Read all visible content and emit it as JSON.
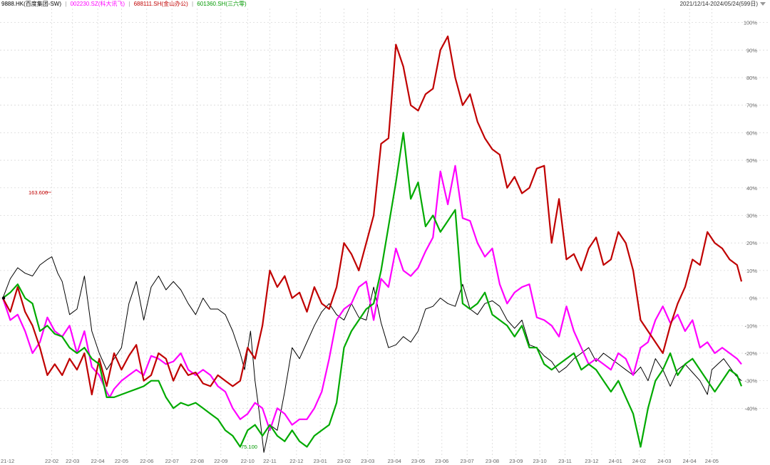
{
  "header": {
    "legend": [
      {
        "text": "9888.HK(百度集团-SW)",
        "color": "#000000"
      },
      {
        "text": "002230.SZ(科大讯飞)",
        "color": "#ff00ff"
      },
      {
        "text": "688111.SH(金山办公)",
        "color": "#c00000"
      },
      {
        "text": "601360.SH(三六零)",
        "color": "#009900"
      }
    ],
    "date_range": "2021/12/14-2024/05/24(599日)"
  },
  "annotations": {
    "max_label": "163.600",
    "min_label": "75.100"
  },
  "colors": {
    "baidu": "#000000",
    "iflytek": "#ff00ff",
    "kingsoft": "#c00000",
    "s360": "#00aa00",
    "grid": "#d9d9d9",
    "axis_text": "#666666"
  },
  "chart_data": {
    "type": "line",
    "title": "",
    "xlabel": "",
    "ylabel": "",
    "ylim": [
      -58,
      103
    ],
    "grid": true,
    "legend_position": "top-left",
    "y_ticks": [
      100,
      90,
      80,
      70,
      60,
      50,
      40,
      30,
      20,
      10,
      0,
      -10,
      -20,
      -30,
      -40
    ],
    "y_tick_labels": [
      "100%",
      "90%",
      "80%",
      "70%",
      "60%",
      "50%",
      "40%",
      "30%",
      "20%",
      "10%",
      "0%",
      "-10%",
      "-20%",
      "-30%",
      "-40%"
    ],
    "x_ticks": [
      "21-12",
      "22-02",
      "22-03",
      "22-04",
      "22-05",
      "22-06",
      "22-07",
      "22-08",
      "22-09",
      "22-10",
      "22-11",
      "22-12",
      "23-01",
      "23-02",
      "23-03",
      "23-04",
      "23-05",
      "23-06",
      "23-07",
      "23-08",
      "23-09",
      "23-10",
      "23-11",
      "23-12",
      "24-01",
      "24-02",
      "24-03",
      "24-04",
      "24-05"
    ],
    "x_tick_pos": [
      0,
      33,
      47,
      64,
      80,
      97,
      114,
      131,
      147,
      165,
      180,
      198,
      214,
      230,
      246,
      264,
      280,
      296,
      313,
      330,
      346,
      362,
      379,
      397,
      413,
      429,
      446,
      463,
      478
    ],
    "x_max": 498,
    "series": [
      {
        "name": "9888.HK(百度集团-SW)",
        "key": "baidu",
        "x": [
          0,
          5,
          10,
          15,
          20,
          25,
          30,
          33,
          37,
          40,
          45,
          50,
          55,
          60,
          65,
          70,
          75,
          80,
          85,
          90,
          95,
          100,
          105,
          110,
          115,
          120,
          125,
          130,
          135,
          140,
          145,
          150,
          155,
          160,
          163,
          167,
          170,
          173,
          176,
          180,
          185,
          190,
          195,
          200,
          205,
          210,
          215,
          220,
          225,
          230,
          235,
          240,
          245,
          250,
          255,
          260,
          265,
          270,
          275,
          280,
          285,
          290,
          295,
          300,
          305,
          310,
          315,
          320,
          325,
          330,
          335,
          340,
          345,
          350,
          355,
          360,
          365,
          370,
          375,
          380,
          385,
          390,
          395,
          400,
          405,
          410,
          415,
          420,
          425,
          430,
          435,
          440,
          445,
          450,
          455,
          460,
          465,
          470,
          475,
          478,
          482,
          486,
          490,
          494,
          498
        ],
        "y": [
          0,
          7,
          11,
          9,
          8,
          12,
          14,
          15,
          9,
          6,
          -6,
          -4,
          8,
          -12,
          -20,
          -26,
          -22,
          -18,
          -2,
          6,
          -8,
          4,
          8,
          3,
          6,
          3,
          -2,
          -6,
          0,
          -4,
          -4,
          -6,
          -12,
          -20,
          -26,
          -12,
          -30,
          -42,
          -56,
          -46,
          -48,
          -34,
          -18,
          -22,
          -16,
          -10,
          -5,
          -2,
          -6,
          -8,
          -2,
          -7,
          -8,
          4,
          -9,
          -18,
          -17,
          -14,
          -16,
          -12,
          -4,
          -3,
          0,
          -2,
          -3,
          5,
          -4,
          -6,
          -2,
          -1,
          -3,
          -8,
          -11,
          -8,
          -17,
          -18,
          -21,
          -23,
          -27,
          -25,
          -22,
          -20,
          -18,
          -23,
          -20,
          -22,
          -24,
          -26,
          -28,
          -25,
          -30,
          -22,
          -26,
          -32,
          -26,
          -24,
          -27,
          -30,
          -35,
          -26,
          -24,
          -22,
          -25,
          -28,
          -30
        ]
      },
      {
        "name": "002230.SZ(科大讯飞)",
        "key": "iflytek",
        "x": [
          0,
          5,
          10,
          15,
          20,
          25,
          30,
          35,
          40,
          45,
          50,
          55,
          60,
          65,
          70,
          72,
          75,
          80,
          85,
          90,
          95,
          100,
          105,
          110,
          115,
          120,
          125,
          130,
          135,
          140,
          145,
          150,
          155,
          160,
          165,
          170,
          175,
          180,
          185,
          190,
          195,
          200,
          205,
          210,
          215,
          220,
          225,
          230,
          235,
          240,
          245,
          250,
          255,
          260,
          265,
          270,
          275,
          280,
          285,
          290,
          295,
          300,
          305,
          310,
          315,
          320,
          325,
          330,
          335,
          340,
          345,
          350,
          355,
          360,
          365,
          370,
          375,
          380,
          385,
          390,
          395,
          400,
          405,
          410,
          415,
          420,
          425,
          430,
          435,
          440,
          445,
          450,
          455,
          460,
          465,
          470,
          475,
          480,
          485,
          490,
          495,
          498
        ],
        "y": [
          0,
          -8,
          -6,
          -12,
          -20,
          -16,
          -7,
          -12,
          -14,
          -10,
          -20,
          -12,
          -25,
          -28,
          -34,
          -36,
          -33,
          -30,
          -28,
          -26,
          -28,
          -21,
          -22,
          -24,
          -23,
          -20,
          -26,
          -28,
          -26,
          -28,
          -32,
          -34,
          -40,
          -44,
          -42,
          -38,
          -40,
          -48,
          -40,
          -42,
          -46,
          -44,
          -44,
          -40,
          -34,
          -22,
          -8,
          -4,
          -2,
          4,
          6,
          -8,
          7,
          4,
          18,
          10,
          8,
          11,
          17,
          22,
          46,
          34,
          48,
          29,
          28,
          20,
          15,
          18,
          5,
          -2,
          2,
          4,
          5,
          -7,
          -8,
          -10,
          -14,
          -3,
          -12,
          -18,
          -24,
          -22,
          -24,
          -26,
          -20,
          -22,
          -28,
          -18,
          -16,
          -8,
          -3,
          -9,
          -6,
          -12,
          -8,
          -18,
          -16,
          -20,
          -18,
          -20,
          -22,
          -24
        ]
      },
      {
        "name": "688111.SH(金山办公)",
        "key": "kingsoft",
        "x": [
          0,
          5,
          10,
          15,
          20,
          25,
          30,
          35,
          40,
          45,
          50,
          55,
          60,
          65,
          70,
          75,
          80,
          85,
          90,
          95,
          100,
          105,
          110,
          115,
          120,
          125,
          130,
          135,
          140,
          145,
          150,
          155,
          160,
          165,
          170,
          175,
          180,
          185,
          190,
          195,
          200,
          205,
          210,
          215,
          220,
          225,
          230,
          235,
          240,
          245,
          250,
          255,
          260,
          265,
          270,
          275,
          280,
          285,
          290,
          295,
          300,
          305,
          310,
          315,
          320,
          325,
          330,
          335,
          340,
          345,
          350,
          355,
          360,
          365,
          370,
          375,
          380,
          385,
          390,
          395,
          400,
          405,
          410,
          415,
          420,
          425,
          430,
          435,
          440,
          445,
          450,
          455,
          460,
          465,
          470,
          475,
          480,
          485,
          490,
          495,
          498
        ],
        "y": [
          0,
          -5,
          4,
          -5,
          -10,
          -18,
          -28,
          -24,
          -28,
          -22,
          -26,
          -20,
          -35,
          -22,
          -32,
          -20,
          -26,
          -21,
          -17,
          -30,
          -28,
          -20,
          -22,
          -30,
          -24,
          -28,
          -27,
          -31,
          -32,
          -28,
          -30,
          -32,
          -30,
          -18,
          -22,
          -10,
          10,
          4,
          8,
          0,
          2,
          -5,
          4,
          -2,
          -4,
          4,
          20,
          16,
          10,
          20,
          30,
          56,
          58,
          92,
          84,
          70,
          68,
          74,
          76,
          90,
          95,
          80,
          70,
          74,
          64,
          58,
          54,
          52,
          40,
          44,
          38,
          40,
          47,
          48,
          20,
          36,
          14,
          16,
          10,
          18,
          22,
          12,
          14,
          24,
          20,
          10,
          -8,
          -12,
          -16,
          -20,
          -10,
          -2,
          4,
          14,
          12,
          24,
          20,
          18,
          14,
          12,
          6
        ]
      },
      {
        "name": "601360.SH(三六零)",
        "key": "s360",
        "x": [
          0,
          5,
          10,
          15,
          20,
          25,
          30,
          35,
          40,
          45,
          50,
          55,
          60,
          65,
          70,
          75,
          80,
          85,
          90,
          95,
          100,
          105,
          110,
          115,
          120,
          125,
          130,
          135,
          140,
          145,
          150,
          155,
          160,
          165,
          170,
          175,
          180,
          185,
          190,
          195,
          200,
          205,
          210,
          215,
          220,
          225,
          230,
          235,
          240,
          245,
          250,
          255,
          260,
          265,
          270,
          275,
          280,
          285,
          290,
          295,
          300,
          305,
          310,
          315,
          320,
          325,
          330,
          335,
          340,
          345,
          350,
          355,
          360,
          365,
          370,
          375,
          380,
          385,
          390,
          395,
          400,
          405,
          410,
          415,
          420,
          425,
          430,
          435,
          440,
          445,
          450,
          455,
          460,
          465,
          470,
          475,
          480,
          485,
          490,
          495,
          498
        ],
        "y": [
          0,
          2,
          5,
          0,
          -2,
          -12,
          -10,
          -13,
          -14,
          -18,
          -20,
          -18,
          -22,
          -24,
          -36,
          -36,
          -35,
          -34,
          -33,
          -32,
          -30,
          -30,
          -36,
          -40,
          -38,
          -39,
          -38,
          -40,
          -42,
          -44,
          -48,
          -50,
          -54,
          -48,
          -46,
          -50,
          -46,
          -50,
          -52,
          -48,
          -52,
          -54,
          -50,
          -48,
          -46,
          -38,
          -18,
          -12,
          -8,
          -4,
          -2,
          10,
          26,
          42,
          60,
          36,
          42,
          26,
          30,
          24,
          28,
          32,
          -2,
          -4,
          -2,
          2,
          -6,
          -8,
          -10,
          -14,
          -10,
          -18,
          -18,
          -24,
          -26,
          -24,
          -22,
          -20,
          -26,
          -24,
          -26,
          -30,
          -34,
          -30,
          -36,
          -42,
          -54,
          -40,
          -30,
          -26,
          -20,
          -28,
          -24,
          -22,
          -26,
          -30,
          -34,
          -30,
          -26,
          -28,
          -32
        ]
      }
    ]
  }
}
